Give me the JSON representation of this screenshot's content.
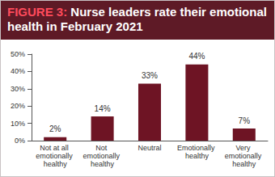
{
  "chart_data": {
    "type": "bar",
    "title": "FIGURE 3: Nurse leaders rate their emotional health in February 2021",
    "categories": [
      "Not at all emotionally healthy",
      "Not emotionally healthy",
      "Neutral",
      "Emotionally healthy",
      "Very emotionally healthy"
    ],
    "values": [
      2,
      14,
      33,
      44,
      7
    ],
    "value_labels": [
      "2%",
      "14%",
      "33%",
      "44%",
      "7%"
    ],
    "color": "#6e1424",
    "ylim": [
      0,
      50
    ],
    "yticks": [
      {
        "value": 0,
        "label": "0%"
      },
      {
        "value": 10,
        "label": "10%"
      },
      {
        "value": 20,
        "label": "20%"
      },
      {
        "value": 30,
        "label": "30%"
      },
      {
        "value": 40,
        "label": "40%"
      },
      {
        "value": 50,
        "label": "50%"
      }
    ],
    "grid": false,
    "data_labels": true
  }
}
